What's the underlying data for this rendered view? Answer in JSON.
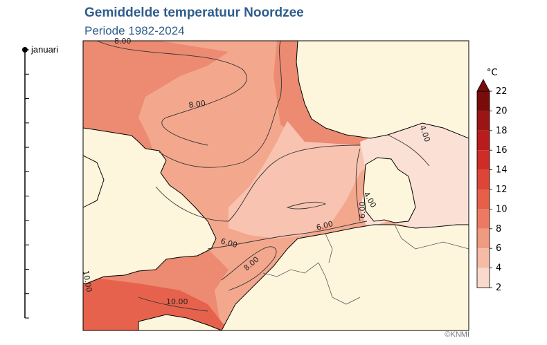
{
  "header": {
    "title": "Gemiddelde temperatuur Noordzee",
    "subtitle": "Periode 1982-2024"
  },
  "time_slider": {
    "current_month": "januari",
    "tick_count": 12
  },
  "legend": {
    "unit": "°C",
    "ticks": [
      "22",
      "20",
      "18",
      "16",
      "14",
      "12",
      "10",
      "8",
      "6",
      "4",
      "2"
    ],
    "colors": [
      "#7a0b0b",
      "#9c1414",
      "#b81c1c",
      "#cf2b27",
      "#dd4536",
      "#e65f49",
      "#ec7a62",
      "#f09a80",
      "#f5bba6",
      "#fad9cd",
      "#fdf1ea"
    ]
  },
  "map": {
    "contour_labels": [
      "8.00",
      "8.00",
      "8.00",
      "6.00",
      "6.00",
      "6.00",
      "4.00",
      "4.00",
      "10.00",
      "10.00"
    ],
    "colors": {
      "land": "#fdf5dc",
      "sea_warm": "#ec8a72",
      "sea_mid": "#f3a88e",
      "sea_cool": "#f8c3b0",
      "sea_cold": "#fbe0d6",
      "channel_hot": "#e6624c"
    }
  },
  "footer": {
    "credit": "©KNMI"
  }
}
